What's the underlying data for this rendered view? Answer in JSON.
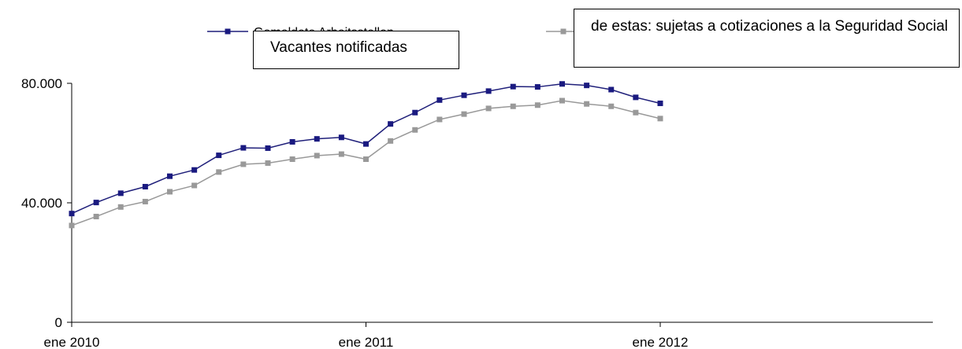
{
  "chart_data": {
    "type": "line",
    "x_labels": [
      "ene 2010",
      "ene 2011",
      "ene 2012"
    ],
    "x_label_index": [
      0,
      12,
      24
    ],
    "x_range": [
      0,
      35
    ],
    "ylim": [
      0,
      80000
    ],
    "y_ticks": [
      0,
      40000,
      80000
    ],
    "y_tick_labels": [
      "0",
      "40.000",
      "80.000"
    ],
    "grid": false,
    "legend_position": "top",
    "series": [
      {
        "name": "Gemeldete Arbeitsstellen",
        "color": "#1f1f7a",
        "marker_color": "#1a1a80",
        "values": [
          36400,
          40100,
          43200,
          45400,
          48900,
          51000,
          55900,
          58400,
          58300,
          60400,
          61400,
          61900,
          59700,
          66400,
          70200,
          74400,
          76000,
          77400,
          78900,
          78800,
          79800,
          79300,
          77900,
          75300,
          73300
        ]
      },
      {
        "name": "de estas: sujetas a cotizaciones a la Seguridad Social",
        "color": "#999999",
        "marker_color": "#999999",
        "values": [
          32400,
          35400,
          38600,
          40400,
          43700,
          45800,
          50300,
          52900,
          53300,
          54600,
          55800,
          56300,
          54600,
          60700,
          64400,
          67900,
          69700,
          71600,
          72300,
          72700,
          74200,
          73100,
          72300,
          70200,
          68200
        ]
      }
    ]
  },
  "legend": {
    "series1_label": "Gemeldete Arbeitsstellen",
    "overlay1_text": "Vacantes notificadas",
    "overlay2_text": "de estas: sujetas a cotizaciones a la Seguridad Social"
  }
}
